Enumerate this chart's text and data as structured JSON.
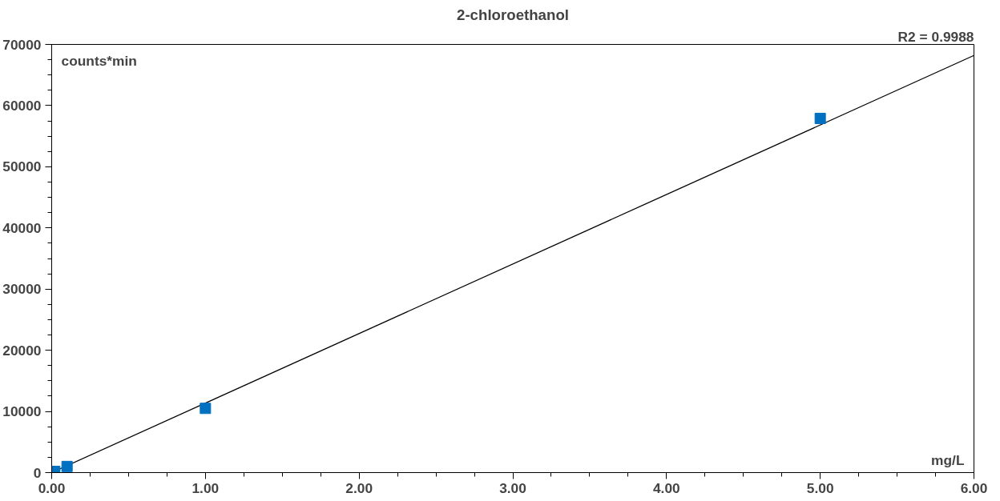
{
  "chart_data": {
    "type": "scatter",
    "title": "2-chloroethanol",
    "xlabel": "mg/L",
    "ylabel": "counts*min",
    "annotations": [
      "R2 = 0.9988"
    ],
    "series": [
      {
        "color": "#0070c0",
        "marker": "square",
        "x": [
          0.02,
          0.1,
          1.0,
          5.0
        ],
        "values": [
          200,
          1000,
          10500,
          57900
        ]
      },
      {
        "type": "line",
        "color": "#000000",
        "line_style": "solid",
        "x": [
          0,
          6
        ],
        "values": [
          0,
          68200
        ]
      }
    ],
    "xlim": [
      0,
      6
    ],
    "xticks": [
      {
        "value": 0,
        "label": "0.00"
      },
      {
        "value": 1,
        "label": "1.00"
      },
      {
        "value": 2,
        "label": "2.00"
      },
      {
        "value": 3,
        "label": "3.00"
      },
      {
        "value": 4,
        "label": "4.00"
      },
      {
        "value": 5,
        "label": "5.00"
      },
      {
        "value": 6,
        "label": "6.00"
      }
    ],
    "ylim": [
      0,
      70000
    ],
    "yticks": [
      0,
      10000,
      20000,
      30000,
      40000,
      50000,
      60000,
      70000
    ],
    "grid": false
  }
}
